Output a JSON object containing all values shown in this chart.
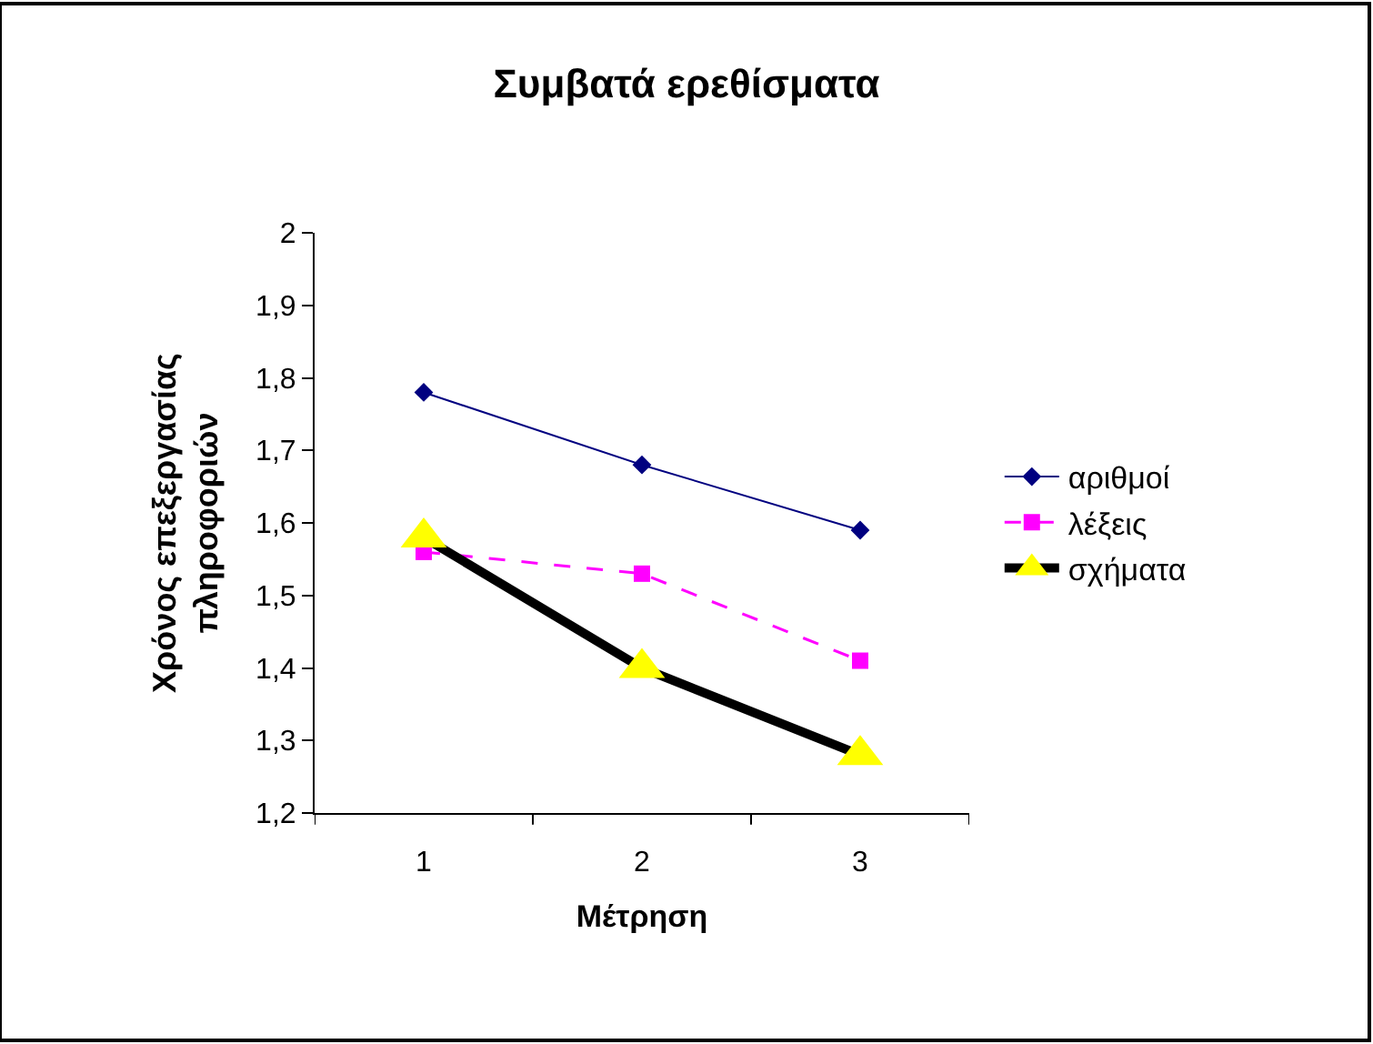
{
  "chart_data": {
    "type": "line",
    "title": "Συμβατά ερεθίσματα",
    "xlabel": "Μέτρηση",
    "ylabel": "Χρόνος επεξεργασίας\nπληροφοριών",
    "categories": [
      "1",
      "2",
      "3"
    ],
    "series": [
      {
        "name": "αριθμοί",
        "color": "#000080",
        "marker": "diamond",
        "line_style": "solid",
        "values": [
          1.78,
          1.68,
          1.59
        ]
      },
      {
        "name": "λέξεις",
        "color": "#ff00ff",
        "marker": "square",
        "line_style": "dashed",
        "values": [
          1.56,
          1.53,
          1.41
        ]
      },
      {
        "name": "σχήματα",
        "color": "#000000",
        "colors": [
          "#ffff00",
          "#ffff00",
          "#ffff00"
        ],
        "marker": "triangle",
        "line_style": "solid",
        "values": [
          1.58,
          1.4,
          1.28
        ]
      }
    ],
    "ylim": [
      1.2,
      2
    ],
    "yticks": [
      {
        "value": 1.2,
        "label": "1,2"
      },
      {
        "value": 1.3,
        "label": "1,3"
      },
      {
        "value": 1.4,
        "label": "1,4"
      },
      {
        "value": 1.5,
        "label": "1,5"
      },
      {
        "value": 1.6,
        "label": "1,6"
      },
      {
        "value": 1.7,
        "label": "1,7"
      },
      {
        "value": 1.8,
        "label": "1,8"
      },
      {
        "value": 1.9,
        "label": "1,9"
      },
      {
        "value": 2,
        "label": "2"
      }
    ],
    "legend": "right"
  }
}
